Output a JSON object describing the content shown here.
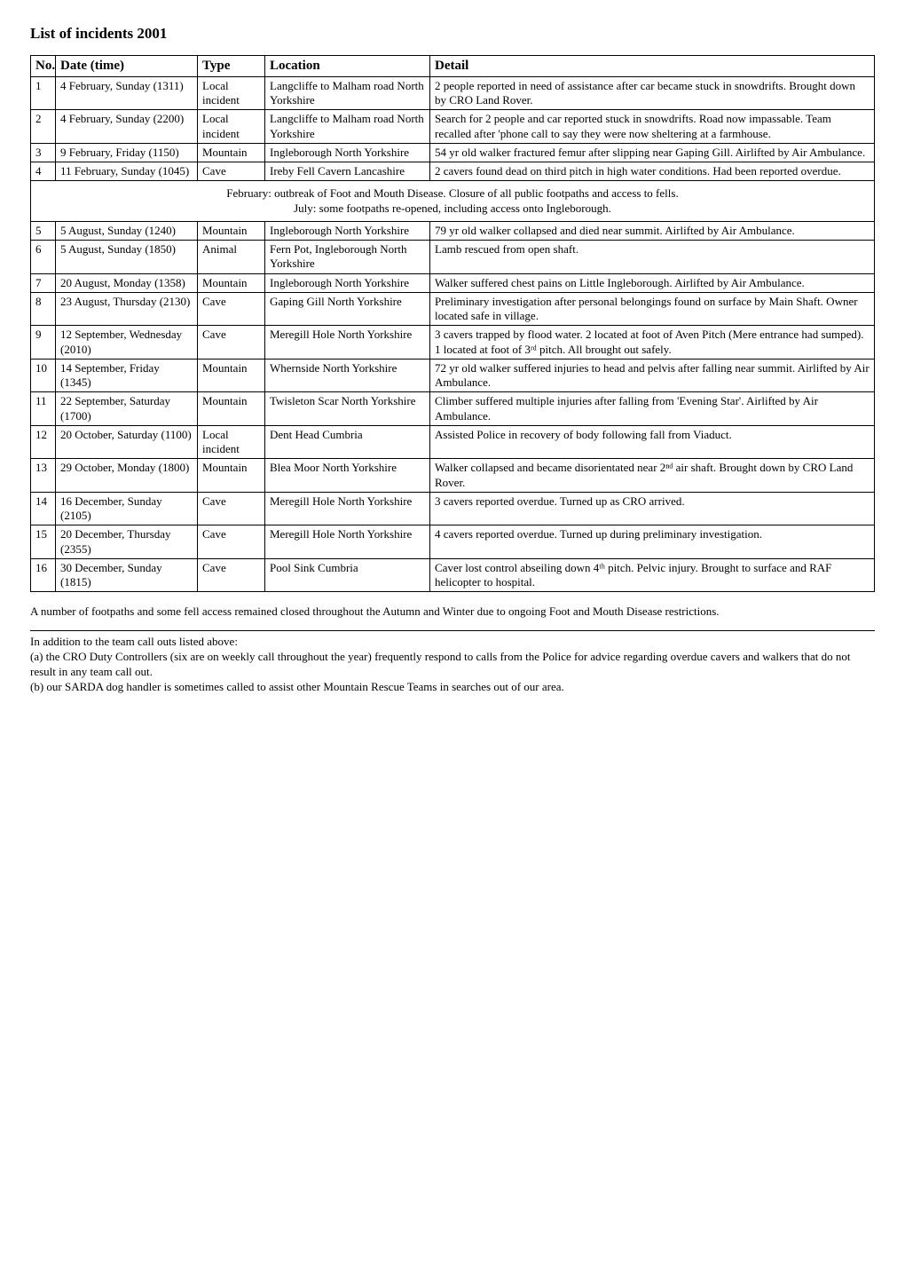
{
  "title": "List of incidents 2001",
  "columns": {
    "no": "No.",
    "date": "Date  (time)",
    "type": "Type",
    "location": "Location",
    "detail": "Detail"
  },
  "banner": {
    "line1": "February: outbreak of Foot and Mouth Disease. Closure of all public footpaths and access to fells.",
    "line2": "July: some footpaths re-opened, including access onto Ingleborough."
  },
  "rows_a": [
    {
      "no": "1",
      "date": "4 February, Sunday (1311)",
      "type": "Local incident",
      "location": "Langcliffe to Malham road North Yorkshire",
      "detail": "2 people reported in need of assistance after car became stuck in snowdrifts. Brought down by CRO Land Rover."
    },
    {
      "no": "2",
      "date": "4 February, Sunday (2200)",
      "type": "Local incident",
      "location": "Langcliffe to Malham road North Yorkshire",
      "detail": "Search for 2 people and car reported stuck in snowdrifts. Road now impassable. Team recalled after 'phone call to say they were now sheltering at a farmhouse."
    },
    {
      "no": "3",
      "date": "9 February, Friday (1150)",
      "type": "Mountain",
      "location": "Ingleborough North Yorkshire",
      "detail": "54 yr old walker fractured femur after slipping near Gaping Gill. Airlifted by Air Ambulance."
    },
    {
      "no": "4",
      "date": "11 February, Sunday (1045)",
      "type": "Cave",
      "location": "Ireby Fell Cavern Lancashire",
      "detail": "2 cavers found dead on third pitch in high water conditions. Had been reported overdue."
    }
  ],
  "rows_b": [
    {
      "no": "5",
      "date": "5 August, Sunday (1240)",
      "type": "Mountain",
      "location": "Ingleborough North Yorkshire",
      "detail": "79 yr old walker collapsed and died near summit. Airlifted by Air Ambulance."
    },
    {
      "no": "6",
      "date": "5 August, Sunday (1850)",
      "type": "Animal",
      "location": "Fern Pot, Ingleborough North Yorkshire",
      "detail": "Lamb rescued from open shaft."
    },
    {
      "no": "7",
      "date": "20 August, Monday (1358)",
      "type": "Mountain",
      "location": "Ingleborough North Yorkshire",
      "detail": "Walker suffered chest pains on Little Ingleborough. Airlifted by Air Ambulance."
    },
    {
      "no": "8",
      "date": "23 August, Thursday (2130)",
      "type": "Cave",
      "location": "Gaping Gill North Yorkshire",
      "detail": "Preliminary investigation after personal belongings found on surface by Main Shaft. Owner located safe in village."
    },
    {
      "no": "9",
      "date": "12 September, Wednesday (2010)",
      "type": "Cave",
      "location": "Meregill Hole North Yorkshire",
      "detail": "3 cavers trapped by flood water. 2 located at foot of Aven Pitch (Mere entrance had sumped). 1 located at foot of 3ʳᵈ pitch. All brought out safely."
    },
    {
      "no": "10",
      "date": "14 September, Friday (1345)",
      "type": "Mountain",
      "location": "Whernside North Yorkshire",
      "detail": "72 yr old walker suffered injuries to head and pelvis after falling near summit. Airlifted by Air Ambulance."
    },
    {
      "no": "11",
      "date": "22 September, Saturday (1700)",
      "type": "Mountain",
      "location": "Twisleton Scar North Yorkshire",
      "detail": "Climber suffered multiple injuries after falling from 'Evening Star'. Airlifted by Air Ambulance."
    },
    {
      "no": "12",
      "date": "20 October, Saturday (1100)",
      "type": "Local incident",
      "location": "Dent Head Cumbria",
      "detail": "Assisted Police in recovery of body following fall from Viaduct."
    },
    {
      "no": "13",
      "date": "29 October, Monday (1800)",
      "type": "Mountain",
      "location": "Blea Moor North Yorkshire",
      "detail": "Walker collapsed and became disorientated near 2ⁿᵈ air shaft. Brought down by CRO Land Rover."
    },
    {
      "no": "14",
      "date": "16 December, Sunday (2105)",
      "type": "Cave",
      "location": "Meregill Hole North Yorkshire",
      "detail": "3 cavers reported overdue. Turned up as CRO arrived."
    },
    {
      "no": "15",
      "date": "20 December, Thursday (2355)",
      "type": "Cave",
      "location": "Meregill Hole North Yorkshire",
      "detail": "4 cavers reported overdue. Turned up during preliminary investigation."
    },
    {
      "no": "16",
      "date": "30 December, Sunday (1815)",
      "type": "Cave",
      "location": "Pool Sink Cumbria",
      "detail": "Caver lost control abseiling down 4ᵗʰ pitch. Pelvic injury. Brought to surface and RAF helicopter to hospital."
    }
  ],
  "postnote": "A number of footpaths and some fell access remained closed throughout the Autumn and Winter due to ongoing Foot and Mouth Disease restrictions.",
  "footnotes": {
    "lead": "In addition to the team call outs listed above:",
    "a": "(a) the CRO Duty Controllers (six are on weekly call throughout the year) frequently respond to calls from the Police for advice regarding overdue cavers and walkers that do not result in any team call out.",
    "b": "(b) our SARDA dog handler is sometimes called to assist other Mountain Rescue Teams in searches out of our area."
  }
}
